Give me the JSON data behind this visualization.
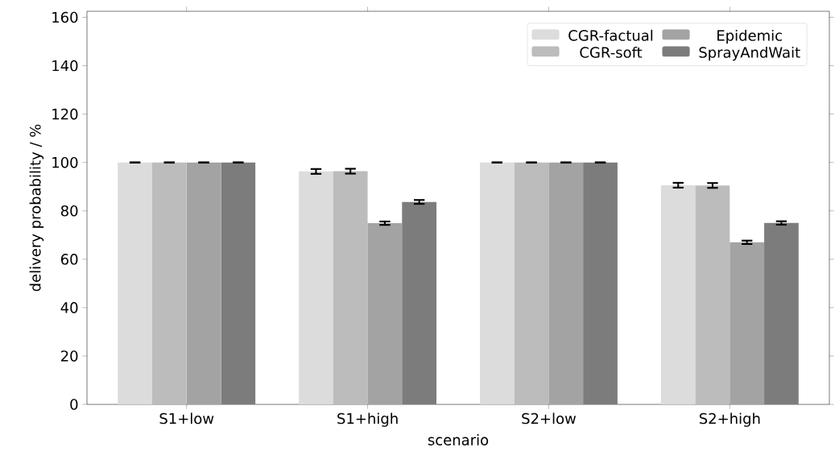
{
  "chart_data": {
    "type": "bar",
    "xlabel": "scenario",
    "ylabel": "delivery probability / %",
    "categories": [
      "S1+low",
      "S1+high",
      "S2+low",
      "S2+high"
    ],
    "series": [
      {
        "name": "CGR-factual",
        "color": "#dcdcdc",
        "values": [
          100,
          96.3,
          100,
          90.6
        ],
        "errors": [
          0,
          1,
          0,
          1
        ]
      },
      {
        "name": "CGR-soft",
        "color": "#bcbcbc",
        "values": [
          100,
          96.4,
          100,
          90.5
        ],
        "errors": [
          0,
          1,
          0,
          1
        ]
      },
      {
        "name": "Epidemic",
        "color": "#a3a3a3",
        "values": [
          100,
          74.9,
          100,
          67
        ],
        "errors": [
          0,
          0.7,
          0,
          0.7
        ]
      },
      {
        "name": "SprayAndWait",
        "color": "#7c7c7c",
        "values": [
          100,
          83.7,
          100,
          75
        ],
        "errors": [
          0,
          0.8,
          0,
          0.7
        ]
      }
    ],
    "ylim": [
      0,
      162.5
    ],
    "yticks": [
      0,
      20,
      40,
      60,
      80,
      100,
      120,
      140,
      160
    ],
    "legend": "top right",
    "grid": false
  }
}
